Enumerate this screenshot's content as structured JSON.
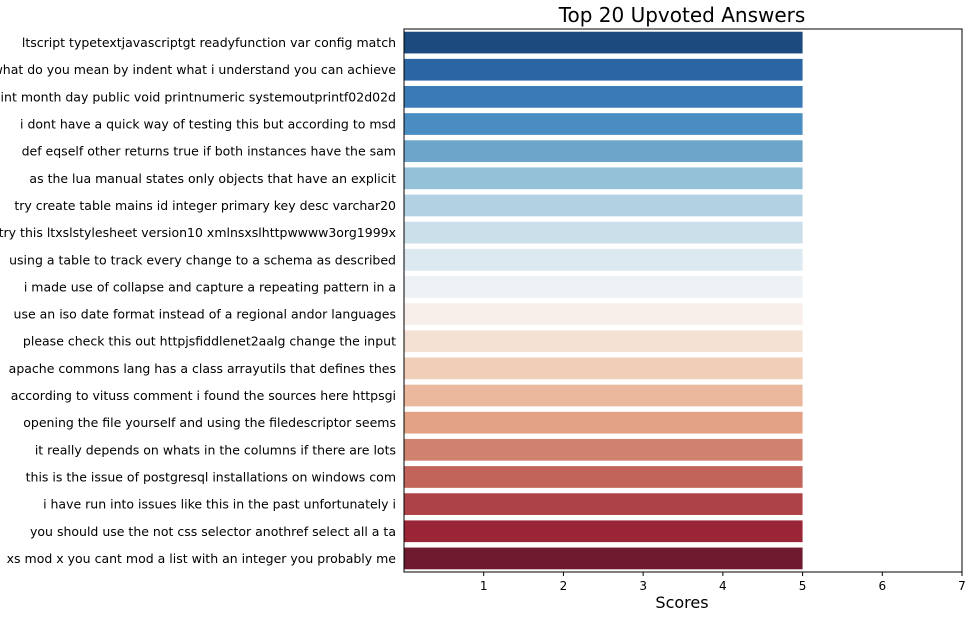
{
  "chart_data": {
    "type": "bar",
    "orientation": "horizontal",
    "title": "Top 20 Upvoted Answers",
    "xlabel": "Scores",
    "ylabel": "",
    "xlim": [
      0,
      7
    ],
    "xticks": [
      "1",
      "2",
      "3",
      "4",
      "5",
      "6",
      "7"
    ],
    "grid": false,
    "categories": [
      "ltscript typetextjavascriptgt readyfunction var config match",
      "what do you mean by indent what i understand you can achieve",
      "int month day public void printnumeric systemoutprintf02d02d",
      "i dont have a quick way of testing this but according to msd",
      "def eqself other returns true if both instances have the sam",
      "as the lua manual states only objects that have an explicit ",
      "try create table mains id integer primary key desc varchar20",
      "try this ltxslstylesheet version10 xmlnsxslhttpwwww3org1999x",
      "using a table to track every change to a schema as described",
      "i made use of collapse and capture a repeating pattern in a ",
      "use an iso date format instead of a regional andor languages",
      "please check this out httpjsfiddlenet2aalg change the input ",
      "apache commons lang has a class arrayutils that defines thes",
      "according to vituss comment i found the sources here httpsgi",
      "opening the file yourself and using the filedescriptor seems",
      "it really depends on whats in the columns if there are lots ",
      "this is the issue of postgresql installations on windows com",
      "i have run into issues like this in the past unfortunately i",
      "you should use the not css selector anothref select all a ta",
      "xs mod x you cant mod a list with an integer you probably me"
    ],
    "values": [
      5,
      5,
      5,
      5,
      5,
      5,
      5,
      5,
      5,
      5,
      5,
      5,
      5,
      5,
      5,
      5,
      5,
      5,
      5,
      5
    ],
    "colors": [
      "#1b4a7f",
      "#2b65a3",
      "#3a7ab6",
      "#4a8dc0",
      "#6ca5c9",
      "#94c0d8",
      "#b2d1e3",
      "#cbdfea",
      "#dde9f1",
      "#edf1f5",
      "#f8efeb",
      "#f5e0d4",
      "#f1ceb8",
      "#eab89c",
      "#e3a286",
      "#d1826f",
      "#c2645a",
      "#ad4348",
      "#9a2536",
      "#6f1a2e"
    ]
  }
}
